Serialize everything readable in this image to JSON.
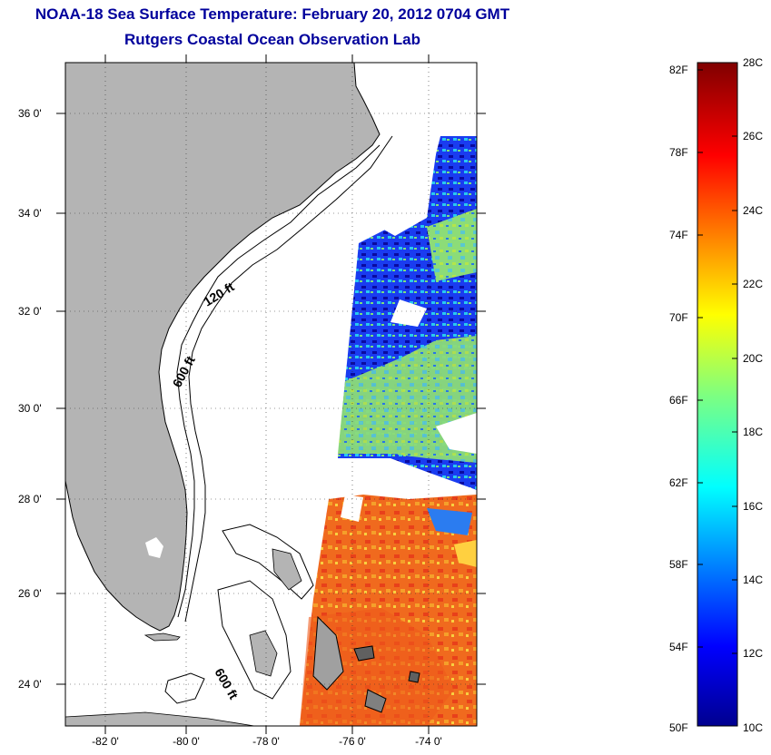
{
  "title": {
    "line1": "NOAA-18 Sea Surface Temperature:  February 20, 2012 0704 GMT",
    "line2": "Rutgers Coastal Ocean Observation Lab"
  },
  "map": {
    "lat_ticks": [
      "36 0'",
      "34 0'",
      "32 0'",
      "30 0'",
      "28 0'",
      "26 0'",
      "24 0'"
    ],
    "lon_ticks": [
      "-82 0'",
      "-80 0'",
      "-78 0'",
      "-76 0'",
      "-74 0'"
    ],
    "contour_labels": [
      "120 ft",
      "600 ft",
      "600 ft"
    ],
    "colors": {
      "land": "#b4b4b4",
      "frame": "#000000"
    }
  },
  "colorbar": {
    "fahrenheit_labels": [
      "82F",
      "78F",
      "74F",
      "70F",
      "66F",
      "62F",
      "58F",
      "54F",
      "50F"
    ],
    "celsius_labels": [
      "28C",
      "26C",
      "24C",
      "22C",
      "20C",
      "18C",
      "16C",
      "14C",
      "12C",
      "10C"
    ],
    "range_c": [
      10,
      28
    ],
    "colormap": "jet"
  }
}
